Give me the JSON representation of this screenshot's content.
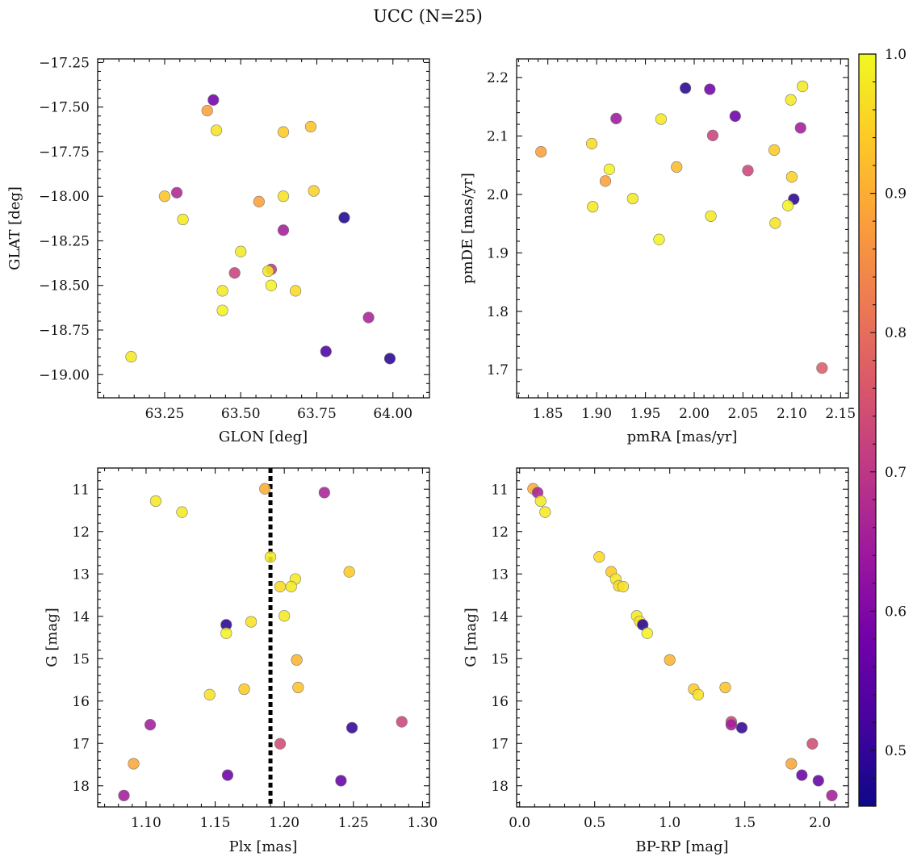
{
  "title": "UCC (N=25)",
  "colormap": {
    "name": "plasma",
    "range": [
      0.46,
      1.0
    ],
    "ticks": [
      0.5,
      0.6,
      0.7,
      0.8,
      0.9,
      1.0
    ],
    "tick_labels": [
      "0.5",
      "0.6",
      "0.7",
      "0.8",
      "0.9",
      "1.0"
    ],
    "stops": [
      "#0d0887",
      "#46039f",
      "#7201a8",
      "#9c179e",
      "#bd3786",
      "#d8576b",
      "#ed7953",
      "#fb9f3a",
      "#fdca26",
      "#f0f921"
    ]
  },
  "chart_data": [
    {
      "type": "scatter",
      "xlabel": "GLON [deg]",
      "ylabel": "GLAT [deg]",
      "xlim": [
        63.03,
        64.12
      ],
      "ylim": [
        -19.13,
        -17.23
      ],
      "xticks": [
        63.25,
        63.5,
        63.75,
        64.0
      ],
      "xtick_labels": [
        "63.25",
        "63.50",
        "63.75",
        "64.00"
      ],
      "yticks": [
        -17.25,
        -17.5,
        -17.75,
        -18.0,
        -18.25,
        -18.5,
        -18.75,
        -19.0
      ],
      "ytick_labels": [
        "−17.25",
        "−17.50",
        "−17.75",
        "−18.00",
        "−18.25",
        "−18.50",
        "−18.75",
        "−19.00"
      ],
      "invert_y": false,
      "points": [
        {
          "x": 63.41,
          "y": -17.46,
          "c": 0.58
        },
        {
          "x": 63.39,
          "y": -17.52,
          "c": 0.88
        },
        {
          "x": 63.42,
          "y": -17.63,
          "c": 0.97
        },
        {
          "x": 63.64,
          "y": -17.64,
          "c": 0.94
        },
        {
          "x": 63.73,
          "y": -17.61,
          "c": 0.93
        },
        {
          "x": 63.25,
          "y": -18.0,
          "c": 0.93
        },
        {
          "x": 63.29,
          "y": -17.98,
          "c": 0.67
        },
        {
          "x": 63.31,
          "y": -18.13,
          "c": 0.98
        },
        {
          "x": 63.56,
          "y": -18.03,
          "c": 0.88
        },
        {
          "x": 63.64,
          "y": -18.0,
          "c": 0.97
        },
        {
          "x": 63.74,
          "y": -17.97,
          "c": 0.95
        },
        {
          "x": 63.84,
          "y": -18.12,
          "c": 0.48
        },
        {
          "x": 63.64,
          "y": -18.19,
          "c": 0.65
        },
        {
          "x": 63.5,
          "y": -18.31,
          "c": 0.98
        },
        {
          "x": 63.48,
          "y": -18.43,
          "c": 0.72
        },
        {
          "x": 63.6,
          "y": -18.41,
          "c": 0.7
        },
        {
          "x": 63.59,
          "y": -18.42,
          "c": 0.98
        },
        {
          "x": 63.44,
          "y": -18.53,
          "c": 0.98
        },
        {
          "x": 63.6,
          "y": -18.5,
          "c": 0.99
        },
        {
          "x": 63.68,
          "y": -18.53,
          "c": 0.96
        },
        {
          "x": 63.44,
          "y": -18.64,
          "c": 0.99
        },
        {
          "x": 63.92,
          "y": -18.68,
          "c": 0.66
        },
        {
          "x": 63.78,
          "y": -18.87,
          "c": 0.53
        },
        {
          "x": 63.14,
          "y": -18.9,
          "c": 0.98
        },
        {
          "x": 63.99,
          "y": -18.91,
          "c": 0.49
        }
      ]
    },
    {
      "type": "scatter",
      "xlabel": "pmRA [mas/yr]",
      "ylabel": "pmDE [mas/yr]",
      "xlim": [
        1.818,
        2.158
      ],
      "ylim": [
        1.652,
        2.232
      ],
      "xticks": [
        1.85,
        1.9,
        1.95,
        2.0,
        2.05,
        2.1,
        2.15
      ],
      "xtick_labels": [
        "1.85",
        "1.90",
        "1.95",
        "2.00",
        "2.05",
        "2.10",
        "2.15"
      ],
      "yticks": [
        1.7,
        1.8,
        1.9,
        2.0,
        2.1,
        2.2
      ],
      "ytick_labels": [
        "1.7",
        "1.8",
        "1.9",
        "2.0",
        "2.1",
        "2.2"
      ],
      "invert_y": false,
      "points": [
        {
          "x": 1.991,
          "y": 2.182,
          "c": 0.49
        },
        {
          "x": 2.016,
          "y": 2.18,
          "c": 0.58
        },
        {
          "x": 2.111,
          "y": 2.185,
          "c": 0.98
        },
        {
          "x": 2.099,
          "y": 2.162,
          "c": 0.98
        },
        {
          "x": 1.92,
          "y": 2.13,
          "c": 0.64
        },
        {
          "x": 1.966,
          "y": 2.129,
          "c": 0.98
        },
        {
          "x": 2.042,
          "y": 2.134,
          "c": 0.57
        },
        {
          "x": 2.109,
          "y": 2.114,
          "c": 0.65
        },
        {
          "x": 2.019,
          "y": 2.101,
          "c": 0.72
        },
        {
          "x": 1.843,
          "y": 2.073,
          "c": 0.88
        },
        {
          "x": 1.895,
          "y": 2.087,
          "c": 0.96
        },
        {
          "x": 2.082,
          "y": 2.076,
          "c": 0.94
        },
        {
          "x": 1.982,
          "y": 2.047,
          "c": 0.92
        },
        {
          "x": 1.913,
          "y": 2.043,
          "c": 0.99
        },
        {
          "x": 2.055,
          "y": 2.041,
          "c": 0.73
        },
        {
          "x": 1.909,
          "y": 2.023,
          "c": 0.88
        },
        {
          "x": 2.1,
          "y": 2.03,
          "c": 0.95
        },
        {
          "x": 1.937,
          "y": 1.993,
          "c": 0.98
        },
        {
          "x": 2.102,
          "y": 1.992,
          "c": 0.49
        },
        {
          "x": 1.896,
          "y": 1.979,
          "c": 0.98
        },
        {
          "x": 2.096,
          "y": 1.981,
          "c": 0.99
        },
        {
          "x": 2.017,
          "y": 1.963,
          "c": 0.98
        },
        {
          "x": 2.083,
          "y": 1.951,
          "c": 0.97
        },
        {
          "x": 1.964,
          "y": 1.923,
          "c": 0.99
        },
        {
          "x": 2.131,
          "y": 1.703,
          "c": 0.77
        }
      ]
    },
    {
      "type": "scatter",
      "xlabel": "Plx [mas]",
      "ylabel": "G [mag]",
      "xlim": [
        1.065,
        1.305
      ],
      "ylim": [
        10.5,
        18.5
      ],
      "xticks": [
        1.1,
        1.15,
        1.2,
        1.25,
        1.3
      ],
      "xtick_labels": [
        "1.10",
        "1.15",
        "1.20",
        "1.25",
        "1.30"
      ],
      "yticks": [
        11,
        12,
        13,
        14,
        15,
        16,
        17,
        18
      ],
      "ytick_labels": [
        "11",
        "12",
        "13",
        "14",
        "15",
        "16",
        "17",
        "18"
      ],
      "invert_y": true,
      "vline": 1.19,
      "points": [
        {
          "x": 1.186,
          "y": 10.99,
          "c": 0.9
        },
        {
          "x": 1.229,
          "y": 11.08,
          "c": 0.66
        },
        {
          "x": 1.107,
          "y": 11.28,
          "c": 0.98
        },
        {
          "x": 1.126,
          "y": 11.54,
          "c": 0.98
        },
        {
          "x": 1.19,
          "y": 12.6,
          "c": 0.98
        },
        {
          "x": 1.247,
          "y": 12.95,
          "c": 0.94
        },
        {
          "x": 1.208,
          "y": 13.12,
          "c": 0.98
        },
        {
          "x": 1.197,
          "y": 13.3,
          "c": 0.96
        },
        {
          "x": 1.205,
          "y": 13.3,
          "c": 0.98
        },
        {
          "x": 1.2,
          "y": 13.99,
          "c": 0.98
        },
        {
          "x": 1.158,
          "y": 14.2,
          "c": 0.49
        },
        {
          "x": 1.176,
          "y": 14.13,
          "c": 0.97
        },
        {
          "x": 1.158,
          "y": 14.4,
          "c": 0.99
        },
        {
          "x": 1.209,
          "y": 15.03,
          "c": 0.91
        },
        {
          "x": 1.21,
          "y": 15.68,
          "c": 0.93
        },
        {
          "x": 1.171,
          "y": 15.72,
          "c": 0.94
        },
        {
          "x": 1.146,
          "y": 15.85,
          "c": 0.97
        },
        {
          "x": 1.285,
          "y": 16.49,
          "c": 0.73
        },
        {
          "x": 1.103,
          "y": 16.56,
          "c": 0.65
        },
        {
          "x": 1.249,
          "y": 16.63,
          "c": 0.5
        },
        {
          "x": 1.197,
          "y": 17.01,
          "c": 0.74
        },
        {
          "x": 1.091,
          "y": 17.48,
          "c": 0.89
        },
        {
          "x": 1.159,
          "y": 17.75,
          "c": 0.57
        },
        {
          "x": 1.241,
          "y": 17.88,
          "c": 0.56
        },
        {
          "x": 1.084,
          "y": 18.23,
          "c": 0.65
        }
      ]
    },
    {
      "type": "scatter",
      "xlabel": "BP-RP [mag]",
      "ylabel": "G [mag]",
      "xlim": [
        -0.02,
        2.19
      ],
      "ylim": [
        10.5,
        18.5
      ],
      "xticks": [
        0.0,
        0.5,
        1.0,
        1.5,
        2.0
      ],
      "xtick_labels": [
        "0.0",
        "0.5",
        "1.0",
        "1.5",
        "2.0"
      ],
      "yticks": [
        11,
        12,
        13,
        14,
        15,
        16,
        17,
        18
      ],
      "ytick_labels": [
        "11",
        "12",
        "13",
        "14",
        "15",
        "16",
        "17",
        "18"
      ],
      "invert_y": true,
      "points": [
        {
          "x": 0.09,
          "y": 10.99,
          "c": 0.9
        },
        {
          "x": 0.12,
          "y": 11.08,
          "c": 0.66
        },
        {
          "x": 0.14,
          "y": 11.28,
          "c": 0.98
        },
        {
          "x": 0.17,
          "y": 11.54,
          "c": 0.98
        },
        {
          "x": 0.53,
          "y": 12.6,
          "c": 0.96
        },
        {
          "x": 0.61,
          "y": 12.95,
          "c": 0.94
        },
        {
          "x": 0.64,
          "y": 13.12,
          "c": 0.98
        },
        {
          "x": 0.66,
          "y": 13.28,
          "c": 0.96
        },
        {
          "x": 0.69,
          "y": 13.3,
          "c": 0.97
        },
        {
          "x": 0.78,
          "y": 13.99,
          "c": 0.98
        },
        {
          "x": 0.8,
          "y": 14.12,
          "c": 0.97
        },
        {
          "x": 0.82,
          "y": 14.2,
          "c": 0.49
        },
        {
          "x": 0.85,
          "y": 14.4,
          "c": 0.99
        },
        {
          "x": 1.0,
          "y": 15.03,
          "c": 0.91
        },
        {
          "x": 1.16,
          "y": 15.72,
          "c": 0.94
        },
        {
          "x": 1.19,
          "y": 15.85,
          "c": 0.97
        },
        {
          "x": 1.37,
          "y": 15.68,
          "c": 0.93
        },
        {
          "x": 1.41,
          "y": 16.49,
          "c": 0.73
        },
        {
          "x": 1.41,
          "y": 16.56,
          "c": 0.65
        },
        {
          "x": 1.48,
          "y": 16.63,
          "c": 0.5
        },
        {
          "x": 1.95,
          "y": 17.01,
          "c": 0.74
        },
        {
          "x": 1.81,
          "y": 17.48,
          "c": 0.89
        },
        {
          "x": 1.88,
          "y": 17.75,
          "c": 0.57
        },
        {
          "x": 1.99,
          "y": 17.88,
          "c": 0.56
        },
        {
          "x": 2.08,
          "y": 18.23,
          "c": 0.65
        }
      ]
    }
  ]
}
